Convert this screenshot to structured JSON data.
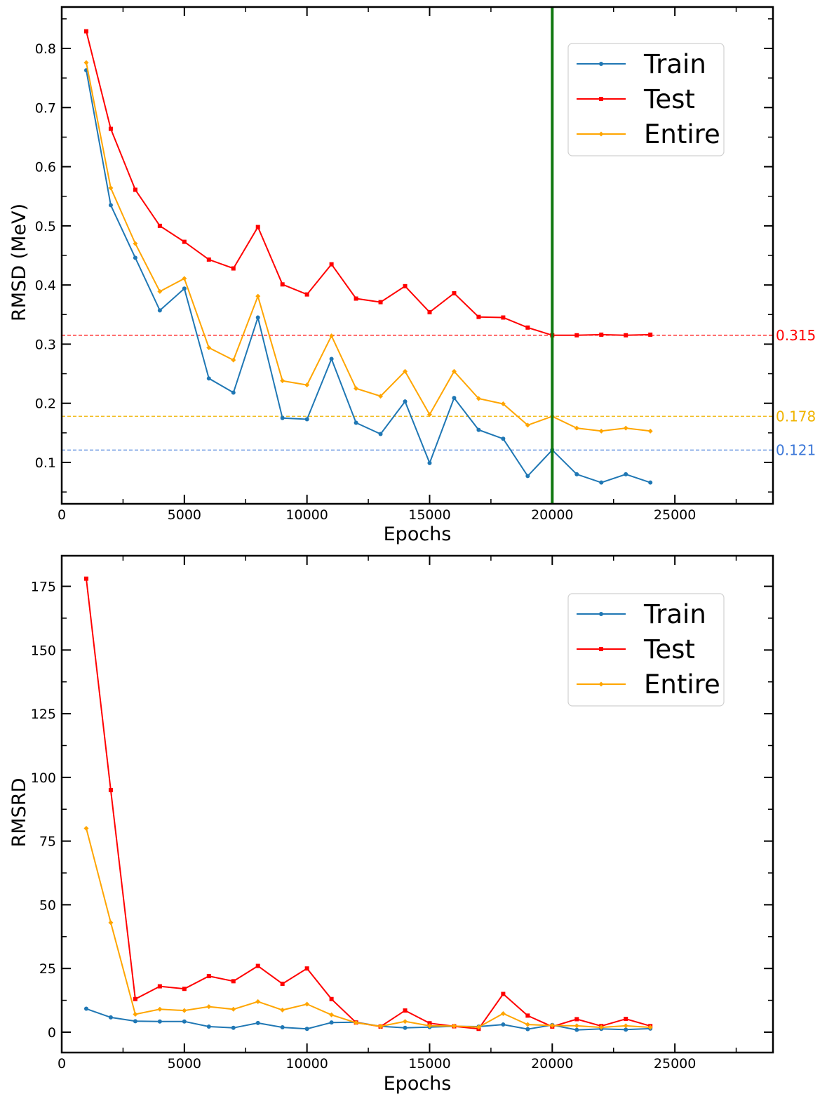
{
  "chart_data": [
    {
      "type": "line",
      "xlabel": "Epochs",
      "ylabel": "RMSD (MeV)",
      "xlim": [
        0,
        29000
      ],
      "ylim": [
        0.03,
        0.87
      ],
      "xticks": [
        0,
        5000,
        10000,
        15000,
        20000,
        25000
      ],
      "yticks": [
        0.1,
        0.2,
        0.3,
        0.4,
        0.5,
        0.6,
        0.7,
        0.8
      ],
      "grid": false,
      "legend_position": "upper-right",
      "x": [
        1000,
        2000,
        3000,
        4000,
        5000,
        6000,
        7000,
        8000,
        9000,
        10000,
        11000,
        12000,
        13000,
        14000,
        15000,
        16000,
        17000,
        18000,
        19000,
        20000,
        21000,
        22000,
        23000,
        24000
      ],
      "series": [
        {
          "name": "Train",
          "color": "#1f77b4",
          "marker": "circle",
          "values": [
            0.763,
            0.535,
            0.446,
            0.357,
            0.394,
            0.242,
            0.218,
            0.345,
            0.175,
            0.173,
            0.275,
            0.167,
            0.148,
            0.203,
            0.099,
            0.209,
            0.155,
            0.14,
            0.077,
            0.121,
            0.08,
            0.066,
            0.08,
            0.066
          ]
        },
        {
          "name": "Test",
          "color": "#ff0000",
          "marker": "square",
          "values": [
            0.829,
            0.664,
            0.561,
            0.5,
            0.473,
            0.443,
            0.428,
            0.498,
            0.401,
            0.384,
            0.435,
            0.377,
            0.371,
            0.398,
            0.354,
            0.386,
            0.346,
            0.345,
            0.328,
            0.315,
            0.315,
            0.316,
            0.315,
            0.316
          ]
        },
        {
          "name": "Entire",
          "color": "#ffa500",
          "marker": "diamond",
          "values": [
            0.776,
            0.564,
            0.47,
            0.389,
            0.411,
            0.294,
            0.273,
            0.381,
            0.238,
            0.231,
            0.314,
            0.225,
            0.212,
            0.254,
            0.181,
            0.254,
            0.208,
            0.199,
            0.163,
            0.178,
            0.158,
            0.153,
            0.158,
            0.153
          ]
        }
      ],
      "vertical_line": {
        "x": 20000,
        "color": "#107810"
      },
      "reference_lines": [
        {
          "y": 0.315,
          "label": "0.315",
          "color": "#ff0000"
        },
        {
          "y": 0.178,
          "label": "0.178",
          "color": "#f0b400"
        },
        {
          "y": 0.121,
          "label": "0.121",
          "color": "#3d78d8"
        }
      ]
    },
    {
      "type": "line",
      "xlabel": "Epochs",
      "ylabel": "RMSRD",
      "xlim": [
        0,
        29000
      ],
      "ylim": [
        -8,
        187
      ],
      "xticks": [
        0,
        5000,
        10000,
        15000,
        20000,
        25000
      ],
      "yticks": [
        0,
        25,
        50,
        75,
        100,
        125,
        150,
        175
      ],
      "grid": false,
      "legend_position": "upper-right",
      "x": [
        1000,
        2000,
        3000,
        4000,
        5000,
        6000,
        7000,
        8000,
        9000,
        10000,
        11000,
        12000,
        13000,
        14000,
        15000,
        16000,
        17000,
        18000,
        19000,
        20000,
        21000,
        22000,
        23000,
        24000
      ],
      "series": [
        {
          "name": "Train",
          "color": "#1f77b4",
          "marker": "circle",
          "values": [
            9.2,
            5.8,
            4.3,
            4.2,
            4.2,
            2.2,
            1.7,
            3.6,
            1.9,
            1.3,
            3.8,
            3.9,
            2.3,
            1.7,
            2.0,
            2.3,
            2.2,
            3.0,
            1.2,
            2.8,
            0.9,
            1.3,
            1.0,
            1.4
          ]
        },
        {
          "name": "Test",
          "color": "#ff0000",
          "marker": "square",
          "values": [
            178,
            95,
            13,
            18,
            17,
            22,
            20,
            26,
            19,
            25,
            13,
            3.8,
            2.2,
            8.5,
            3.5,
            2.3,
            1.3,
            15,
            6.5,
            2.2,
            5.1,
            2.4,
            5.2,
            2.4
          ]
        },
        {
          "name": "Entire",
          "color": "#ffa500",
          "marker": "diamond",
          "values": [
            80,
            43,
            7.0,
            9.0,
            8.5,
            10,
            9.0,
            12,
            8.7,
            11,
            6.8,
            3.7,
            2.3,
            4.2,
            2.5,
            2.4,
            2.0,
            7.3,
            3.0,
            2.6,
            2.5,
            1.9,
            2.5,
            1.9
          ]
        }
      ]
    }
  ]
}
